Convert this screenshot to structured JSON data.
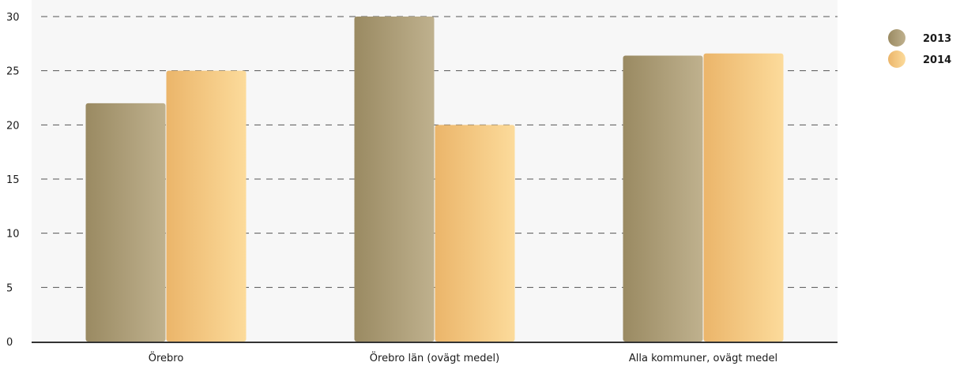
{
  "chart_data": {
    "type": "bar",
    "title": "",
    "xlabel": "",
    "ylabel": "",
    "categories": [
      "Örebro",
      "Örebro län (ovägt medel)",
      "Alla kommuner, ovägt medel"
    ],
    "series": [
      {
        "name": "2013",
        "values": [
          22,
          30,
          26.4
        ],
        "color": "#9a8a62",
        "color_light": "#bfb18e"
      },
      {
        "name": "2014",
        "values": [
          25,
          20,
          26.6
        ],
        "color": "#ebb56a",
        "color_light": "#fcdb9b"
      }
    ],
    "ylim": [
      0,
      30
    ],
    "yticks": [
      0,
      5,
      10,
      15,
      20,
      25,
      30
    ],
    "grid": true,
    "legend_position": "top-right",
    "plot_background": "#f7f7f7",
    "grid_color": "#555555"
  }
}
